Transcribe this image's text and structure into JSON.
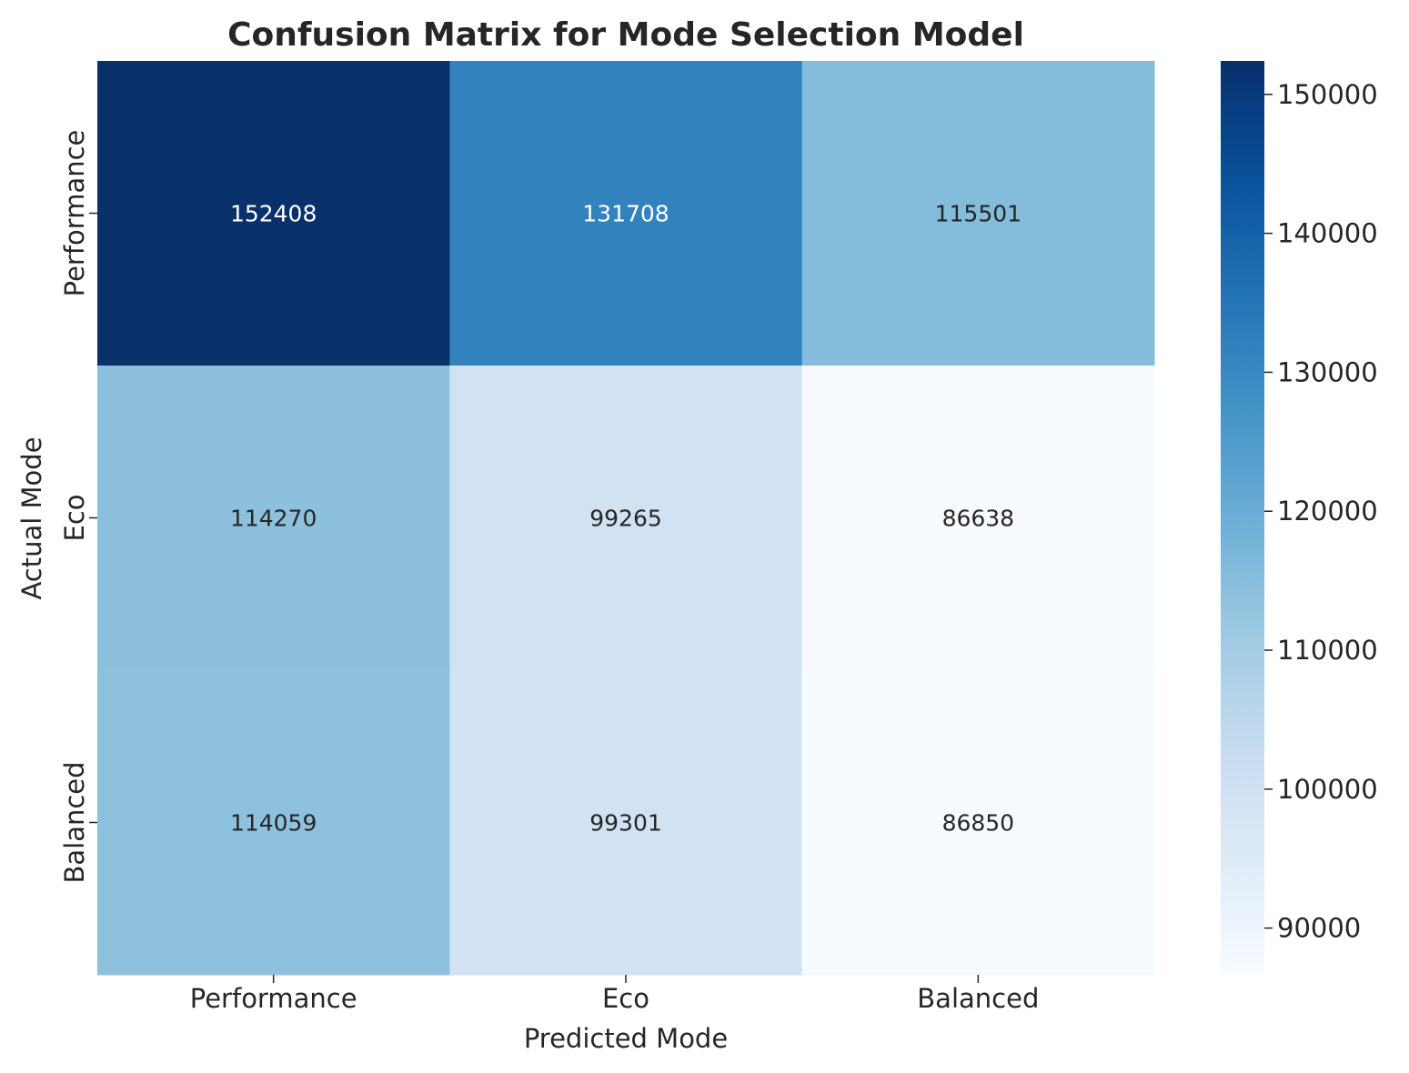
{
  "chart_data": {
    "type": "heatmap",
    "title": "Confusion Matrix for Mode Selection Model",
    "xlabel": "Predicted Mode",
    "ylabel": "Actual Mode",
    "x_categories": [
      "Performance",
      "Eco",
      "Balanced"
    ],
    "y_categories": [
      "Performance",
      "Eco",
      "Balanced"
    ],
    "values": [
      [
        152408,
        131708,
        115501
      ],
      [
        114270,
        99265,
        86638
      ],
      [
        114059,
        99301,
        86850
      ]
    ],
    "colormap": "Blues",
    "colorbar": {
      "range": [
        86638,
        152408
      ],
      "ticks": [
        90000,
        100000,
        110000,
        120000,
        130000,
        140000,
        150000
      ]
    },
    "annotation_colors": {
      "dark_cell": "#ffffff",
      "light_cell": "#262626"
    }
  }
}
